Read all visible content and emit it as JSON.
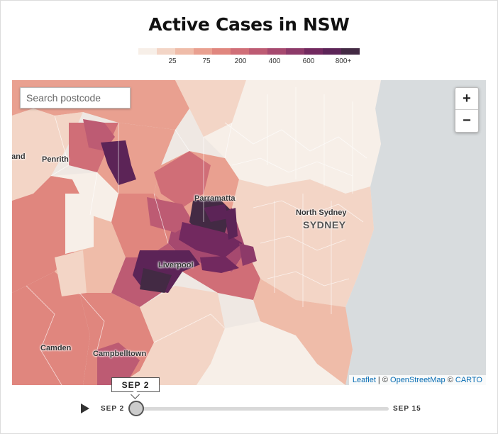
{
  "title": "Active Cases in NSW",
  "legend": {
    "colors": [
      "#f7efe8",
      "#f3d5c6",
      "#efbca9",
      "#e9a090",
      "#e0867e",
      "#d06e77",
      "#bd5b73",
      "#a6496f",
      "#8d3a69",
      "#72295f",
      "#5c2457",
      "#432a44"
    ],
    "labels": [
      "25",
      "75",
      "200",
      "400",
      "600",
      "800+"
    ]
  },
  "map": {
    "search_placeholder": "Search postcode",
    "zoom_in": "+",
    "zoom_out": "−",
    "labels": {
      "penrith": "Penrith",
      "parramatta": "Parramatta",
      "north_sydney": "North Sydney",
      "sydney": "SYDNEY",
      "liverpool": "Liverpool",
      "camden": "Camden",
      "campbelltown": "Campbelltown",
      "land": "and"
    },
    "attribution": {
      "leaflet": "Leaflet",
      "sep1": " | © ",
      "osm": "OpenStreetMap",
      "sep2": " © ",
      "carto": "CARTO"
    }
  },
  "timeline": {
    "current": "SEP 2",
    "start": "SEP 2",
    "end": "SEP 15",
    "progress": 0
  }
}
